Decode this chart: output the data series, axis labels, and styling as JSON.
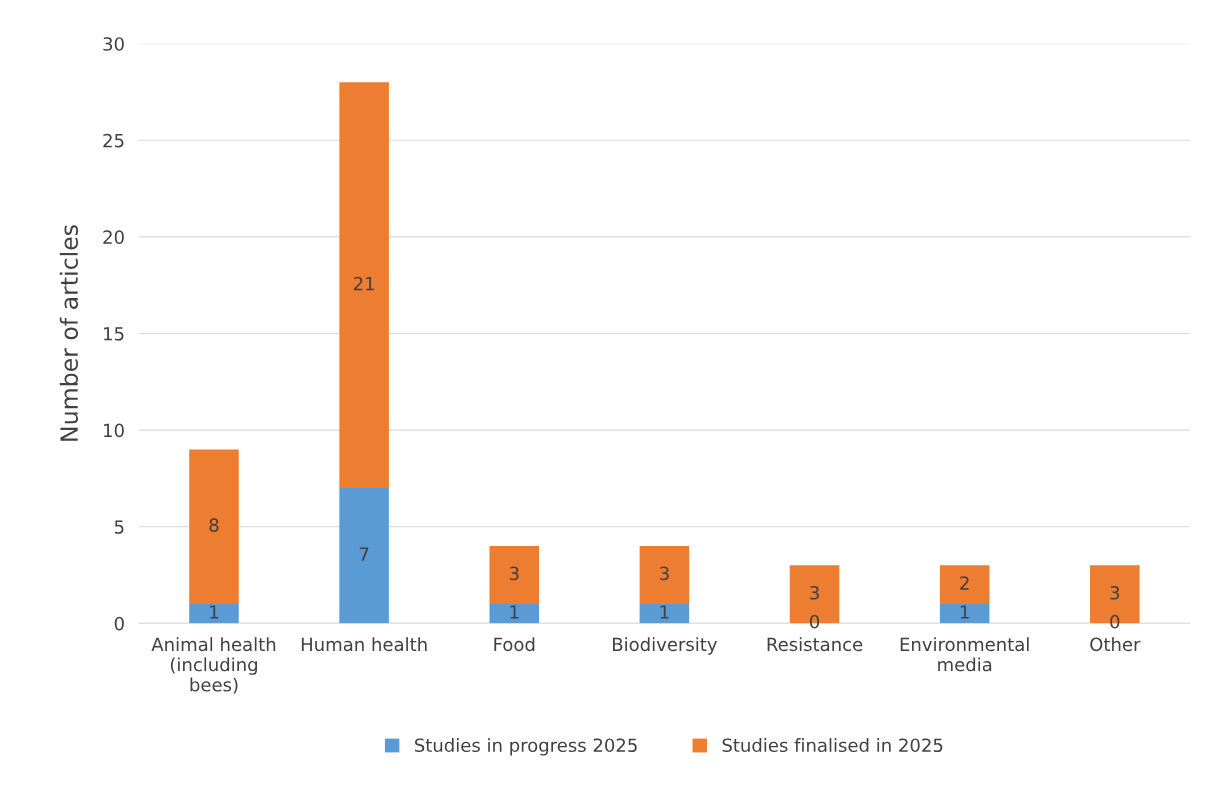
{
  "chart_data": {
    "type": "bar",
    "stacked": true,
    "ylabel": "Number of articles",
    "categories": [
      "Animal health (including bees)",
      "Human health",
      "Food",
      "Biodiversity",
      "Resistance",
      "Environmental media",
      "Other"
    ],
    "series": [
      {
        "name": "Studies in progress 2025",
        "color": "#5b9bd5",
        "values": [
          1,
          7,
          1,
          1,
          0,
          1,
          0
        ]
      },
      {
        "name": "Studies finalised in 2025",
        "color": "#ed7d31",
        "values": [
          8,
          21,
          3,
          3,
          3,
          2,
          3
        ]
      }
    ],
    "ylim": [
      0,
      30
    ],
    "yticks": [
      0,
      5,
      10,
      15,
      20,
      25,
      30
    ],
    "grid": "y",
    "legend": "bottom",
    "data_labels": true
  }
}
